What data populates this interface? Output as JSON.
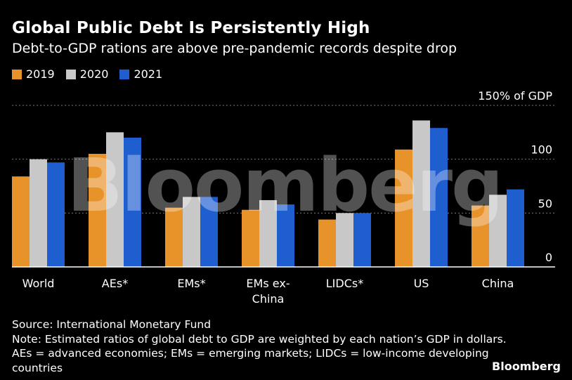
{
  "title": "Global Public Debt Is Persistently High",
  "subtitle": "Debt-to-GDP rations are above pre-pandemic records despite drop",
  "source": "Source: International Monetary Fund",
  "note": "Note: Estimated ratios of global debt to GDP are weighted by each nation’s GDP in dollars. AEs = advanced economies; EMs = emerging markets; LIDCs = low-income developing countries",
  "brand": "Bloomberg",
  "watermark": "Bloomberg",
  "colors": {
    "2019": "#e8922a",
    "2020": "#c8c8c8",
    "2021": "#1f5ecf",
    "grid": "#777777",
    "axis": "#ffffff"
  },
  "chart_data": {
    "type": "bar",
    "categories": [
      "World",
      "AEs*",
      "EMs*",
      "EMs ex-China",
      "LIDCs*",
      "US",
      "China"
    ],
    "category_lines": [
      [
        "World"
      ],
      [
        "AEs*"
      ],
      [
        "EMs*"
      ],
      [
        "EMs ex-",
        "China"
      ],
      [
        "LIDCs*"
      ],
      [
        "US"
      ],
      [
        "China"
      ]
    ],
    "series": [
      {
        "name": "2019",
        "values": [
          84,
          105,
          55,
          53,
          44,
          109,
          57
        ]
      },
      {
        "name": "2020",
        "values": [
          100,
          125,
          65,
          62,
          50,
          136,
          67
        ]
      },
      {
        "name": "2021",
        "values": [
          97,
          120,
          65,
          58,
          50,
          129,
          72
        ]
      }
    ],
    "yticks": [
      0,
      50,
      100,
      150
    ],
    "ytick_labels": [
      "0",
      "50",
      "100",
      "150% of GDP"
    ],
    "ylim": [
      0,
      150
    ],
    "grid": true,
    "legend_position": "top-left"
  }
}
